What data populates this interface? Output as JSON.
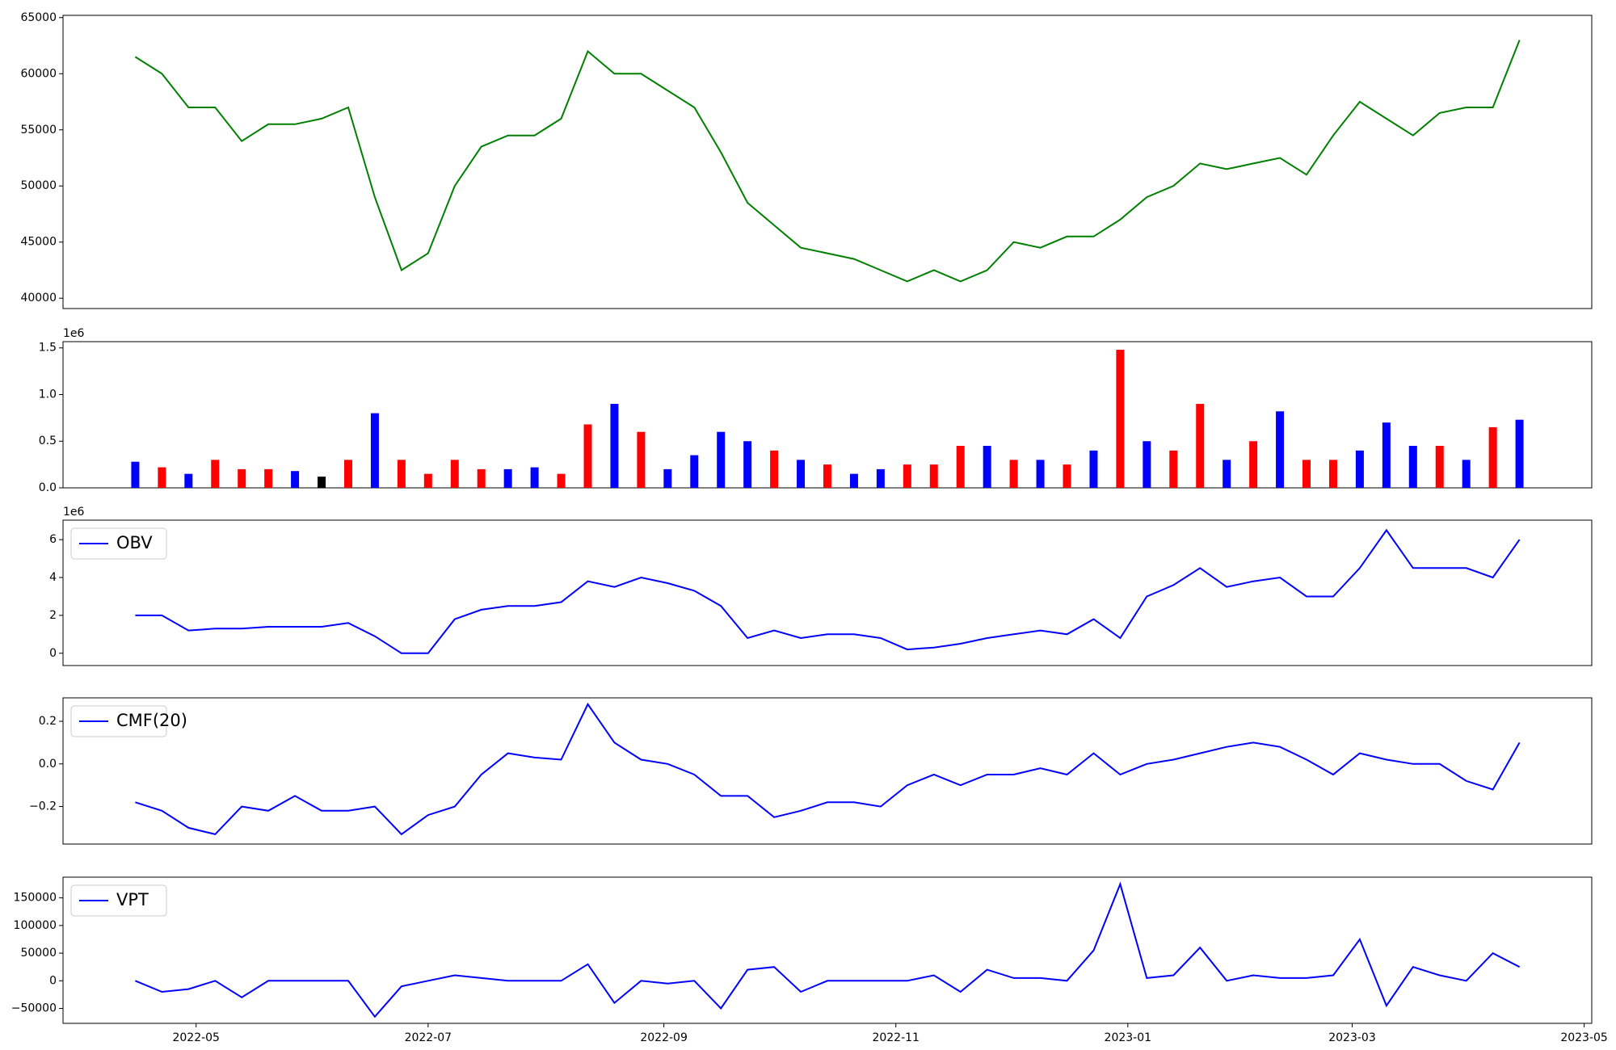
{
  "chart_data": [
    {
      "type": "line",
      "color": "#008000",
      "x": [
        "2022-04-15",
        "2022-04-22",
        "2022-04-29",
        "2022-05-06",
        "2022-05-13",
        "2022-05-20",
        "2022-05-27",
        "2022-06-03",
        "2022-06-10",
        "2022-06-17",
        "2022-06-24",
        "2022-07-01",
        "2022-07-08",
        "2022-07-15",
        "2022-07-22",
        "2022-07-29",
        "2022-08-05",
        "2022-08-12",
        "2022-08-19",
        "2022-08-26",
        "2022-09-02",
        "2022-09-09",
        "2022-09-16",
        "2022-09-23",
        "2022-09-30",
        "2022-10-07",
        "2022-10-14",
        "2022-10-21",
        "2022-10-28",
        "2022-11-04",
        "2022-11-11",
        "2022-11-18",
        "2022-11-25",
        "2022-12-02",
        "2022-12-09",
        "2022-12-16",
        "2022-12-23",
        "2022-12-30",
        "2023-01-06",
        "2023-01-13",
        "2023-01-20",
        "2023-01-27",
        "2023-02-03",
        "2023-02-10",
        "2023-02-17",
        "2023-02-24",
        "2023-03-03",
        "2023-03-10",
        "2023-03-17",
        "2023-03-24",
        "2023-03-31",
        "2023-04-07",
        "2023-04-14"
      ],
      "xlim": [
        "2022-03-27",
        "2023-05-03"
      ],
      "values": [
        61500,
        60000,
        57000,
        57000,
        54000,
        55500,
        55500,
        56000,
        57000,
        49000,
        42500,
        44000,
        50000,
        53500,
        54500,
        54500,
        56000,
        62000,
        60000,
        60000,
        58500,
        57000,
        53000,
        48500,
        46500,
        44500,
        44000,
        43500,
        42500,
        41500,
        42500,
        41500,
        42500,
        45000,
        44500,
        45500,
        45500,
        47000,
        49000,
        50000,
        52000,
        51500,
        52000,
        52500,
        51000,
        54500,
        57500,
        56000,
        54500,
        56500,
        57000,
        57000,
        63000
      ],
      "ylim": [
        39080,
        65200
      ],
      "yticks": [
        40000,
        45000,
        50000,
        55000,
        60000,
        65000
      ]
    },
    {
      "type": "bar",
      "y_offset_label": "1e6",
      "values": [
        0.28,
        0.22,
        0.15,
        0.3,
        0.2,
        0.2,
        0.18,
        0.12,
        0.3,
        0.8,
        0.3,
        0.15,
        0.3,
        0.2,
        0.2,
        0.22,
        0.15,
        0.68,
        0.9,
        0.6,
        0.2,
        0.35,
        0.6,
        0.5,
        0.4,
        0.3,
        0.25,
        0.15,
        0.2,
        0.25,
        0.25,
        0.45,
        0.45,
        0.3,
        0.3,
        0.25,
        0.4,
        1.48,
        0.5,
        0.4,
        0.9,
        0.3,
        0.5,
        0.82,
        0.3,
        0.3,
        0.4,
        0.7,
        0.45,
        0.45,
        0.3,
        0.65,
        0.73
      ],
      "colors": [
        "#0000ff",
        "#ff0000",
        "#0000ff",
        "#ff0000",
        "#ff0000",
        "#ff0000",
        "#0000ff",
        "#000000",
        "#ff0000",
        "#0000ff",
        "#ff0000",
        "#ff0000",
        "#ff0000",
        "#ff0000",
        "#0000ff",
        "#0000ff",
        "#ff0000",
        "#ff0000",
        "#0000ff",
        "#ff0000",
        "#0000ff",
        "#0000ff",
        "#0000ff",
        "#0000ff",
        "#ff0000",
        "#0000ff",
        "#ff0000",
        "#0000ff",
        "#0000ff",
        "#ff0000",
        "#ff0000",
        "#ff0000",
        "#0000ff",
        "#ff0000",
        "#0000ff",
        "#ff0000",
        "#0000ff",
        "#ff0000",
        "#0000ff",
        "#ff0000",
        "#ff0000",
        "#0000ff",
        "#ff0000",
        "#0000ff",
        "#ff0000",
        "#ff0000",
        "#0000ff",
        "#0000ff",
        "#0000ff",
        "#ff0000",
        "#0000ff",
        "#ff0000",
        "#0000ff"
      ],
      "ylim": [
        0,
        1.567
      ],
      "yticks": [
        {
          "value": 0,
          "label": "0.0"
        },
        0.5,
        {
          "value": 1,
          "label": "1.0"
        },
        1.5
      ]
    },
    {
      "type": "line",
      "y_offset_label": "1e6",
      "legend": "upper left",
      "series": [
        {
          "name": "OBV",
          "color": "#0000ff",
          "values": [
            2.0,
            2.0,
            1.2,
            1.3,
            1.3,
            1.4,
            1.4,
            1.4,
            1.6,
            0.9,
            0.0,
            0.0,
            1.8,
            2.3,
            2.5,
            2.5,
            2.7,
            3.8,
            3.5,
            4.0,
            3.7,
            3.3,
            2.5,
            0.8,
            1.2,
            0.8,
            1.0,
            1.0,
            0.8,
            0.2,
            0.3,
            0.5,
            0.8,
            1.0,
            1.2,
            1.0,
            1.8,
            0.8,
            3.0,
            3.6,
            4.5,
            3.5,
            3.8,
            4.0,
            3.0,
            3.0,
            4.5,
            6.5,
            4.5,
            4.5,
            4.5,
            4.0,
            6.0
          ]
        }
      ],
      "ylim": [
        -0.65,
        7.03
      ],
      "yticks": [
        0,
        2,
        4,
        6
      ]
    },
    {
      "type": "line",
      "legend": "upper left",
      "series": [
        {
          "name": "CMF(20)",
          "color": "#0000ff",
          "values": [
            -0.18,
            -0.22,
            -0.3,
            -0.33,
            -0.2,
            -0.22,
            -0.15,
            -0.22,
            -0.22,
            -0.2,
            -0.33,
            -0.24,
            -0.2,
            -0.05,
            0.05,
            0.03,
            0.02,
            0.28,
            0.1,
            0.02,
            0.0,
            -0.05,
            -0.15,
            -0.15,
            -0.25,
            -0.22,
            -0.18,
            -0.18,
            -0.2,
            -0.1,
            -0.05,
            -0.1,
            -0.05,
            -0.05,
            -0.02,
            -0.05,
            0.05,
            -0.05,
            0.0,
            0.02,
            0.05,
            0.08,
            0.1,
            0.08,
            0.02,
            -0.05,
            0.05,
            0.02,
            0.0,
            0.0,
            -0.08,
            -0.12,
            0.1
          ]
        }
      ],
      "ylim": [
        -0.376,
        0.31
      ],
      "yticks": [
        {
          "value": -0.2,
          "label": "−0.2"
        },
        {
          "value": 0,
          "label": "0.0"
        },
        0.2
      ]
    },
    {
      "type": "line",
      "legend": "upper left",
      "series": [
        {
          "name": "VPT",
          "color": "#0000ff",
          "values": [
            0,
            -20000,
            -15000,
            0,
            -30000,
            0,
            0,
            0,
            0,
            -65000,
            -10000,
            0,
            10000,
            5000,
            0,
            0,
            0,
            30000,
            -40000,
            0,
            -5000,
            0,
            -50000,
            20000,
            25000,
            -20000,
            0,
            0,
            0,
            0,
            10000,
            -20000,
            20000,
            5000,
            5000,
            0,
            55000,
            175000,
            5000,
            10000,
            60000,
            0,
            10000,
            5000,
            5000,
            10000,
            75000,
            -45000,
            25000,
            10000,
            0,
            50000,
            25000
          ]
        }
      ],
      "ylim": [
        -77000,
        187500
      ],
      "yticks": [
        {
          "value": -50000,
          "label": "−50000"
        },
        0,
        50000,
        100000,
        150000
      ],
      "xticks": [
        {
          "value": "2022-05-01",
          "label": "2022-05"
        },
        {
          "value": "2022-07-01",
          "label": "2022-07"
        },
        {
          "value": "2022-09-01",
          "label": "2022-09"
        },
        {
          "value": "2022-11-01",
          "label": "2022-11"
        },
        {
          "value": "2023-01-01",
          "label": "2023-01"
        },
        {
          "value": "2023-03-01",
          "label": "2023-03"
        },
        {
          "value": "2023-05-01",
          "label": "2023-05"
        }
      ]
    }
  ]
}
